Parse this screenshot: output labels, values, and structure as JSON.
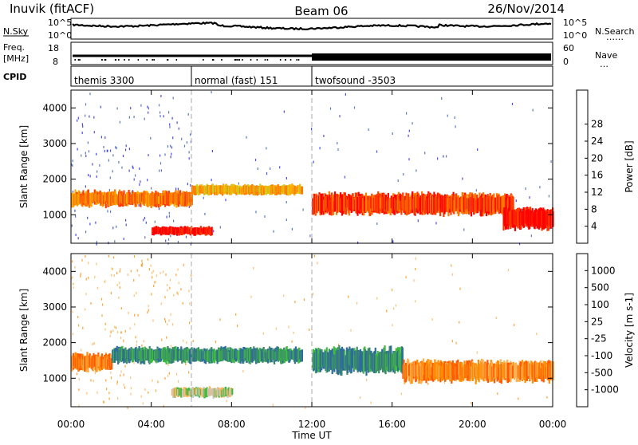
{
  "header": {
    "station": "Inuvik (fitACF)",
    "beam": "Beam 06",
    "date": "26/Nov/2014"
  },
  "noise_panel": {
    "left_label": "N.Sky",
    "left_ticks": [
      "10^5",
      "10^0"
    ],
    "right_label": "N.Search",
    "right_ticks": [
      "10^5",
      "10^0"
    ]
  },
  "freq_panel": {
    "left_label_line1": "Freq.",
    "left_label_line2": "[MHz]",
    "left_ticks": [
      "18",
      "8"
    ],
    "right_label": "Nave",
    "right_ticks": [
      "60",
      "0"
    ]
  },
  "cpid_panel": {
    "label": "CPID",
    "segments": [
      {
        "name": "themis 3300",
        "start_hour": 0,
        "end_hour": 6
      },
      {
        "name": "normal (fast) 151",
        "start_hour": 6,
        "end_hour": 12
      },
      {
        "name": "twofsound -3503",
        "start_hour": 12,
        "end_hour": 24
      }
    ]
  },
  "chart_data": [
    {
      "type": "heatmap",
      "title": "",
      "xlabel": "Time UT",
      "ylabel": "Slant Range [km]",
      "xlim": [
        0,
        24
      ],
      "ylim": [
        200,
        4500
      ],
      "x_ticks": [
        "00:00",
        "04:00",
        "08:00",
        "12:00",
        "16:00",
        "20:00",
        "00:00"
      ],
      "y_ticks": [
        "1000",
        "2000",
        "3000",
        "4000"
      ],
      "colorbar": {
        "label": "Power [dB]",
        "tick_labels": [
          "4",
          "8",
          "12",
          "16",
          "20",
          "24",
          "28"
        ],
        "colors": [
          "#1c1cff",
          "#2f55b8",
          "#2f8a6b",
          "#3da858",
          "#c8d020",
          "#ffaa00",
          "#ff7a00",
          "#ff3a00",
          "#ff0000"
        ]
      },
      "features": [
        {
          "t_start": 0.0,
          "t_end": 6.0,
          "range_center": 1450,
          "range_halfwidth": 180,
          "level": 6
        },
        {
          "t_start": 6.0,
          "t_end": 11.5,
          "range_center": 1700,
          "range_halfwidth": 120,
          "level": 5
        },
        {
          "t_start": 12.0,
          "t_end": 22.0,
          "range_center": 1300,
          "range_halfwidth": 250,
          "level": 7
        },
        {
          "t_start": 21.5,
          "t_end": 24.0,
          "range_center": 900,
          "range_halfwidth": 250,
          "level": 8
        },
        {
          "t_start": 4.0,
          "t_end": 7.0,
          "range_center": 550,
          "range_halfwidth": 100,
          "level": 8
        }
      ]
    },
    {
      "type": "heatmap",
      "title": "",
      "xlabel": "Time UT",
      "ylabel": "Slant Range [km]",
      "xlim": [
        0,
        24
      ],
      "ylim": [
        200,
        4500
      ],
      "x_ticks": [
        "00:00",
        "04:00",
        "08:00",
        "12:00",
        "16:00",
        "20:00",
        "00:00"
      ],
      "y_ticks": [
        "1000",
        "2000",
        "3000",
        "4000"
      ],
      "colorbar": {
        "label": "Velocity [m s-1]",
        "tick_labels": [
          "1000",
          "500",
          "100",
          "25",
          "-25",
          "-100",
          "-500",
          "-1000"
        ],
        "colors": [
          "#1a3fd0",
          "#2f6aa0",
          "#3b8a6a",
          "#3fbb3f",
          "#c8c8c8",
          "#ffb050",
          "#ff8c00",
          "#ff5a00",
          "#ff0000"
        ]
      },
      "features": [
        {
          "t_start": 0.0,
          "t_end": 2.0,
          "range_center": 1450,
          "range_halfwidth": 200,
          "level": 6
        },
        {
          "t_start": 2.0,
          "t_end": 11.5,
          "range_center": 1650,
          "range_halfwidth": 180,
          "level": 2
        },
        {
          "t_start": 12.0,
          "t_end": 16.5,
          "range_center": 1500,
          "range_halfwidth": 300,
          "level": 2
        },
        {
          "t_start": 16.5,
          "t_end": 24.0,
          "range_center": 1200,
          "range_halfwidth": 250,
          "level": 6
        },
        {
          "t_start": 5.0,
          "t_end": 8.0,
          "range_center": 600,
          "range_halfwidth": 120,
          "level": 4
        }
      ]
    }
  ]
}
